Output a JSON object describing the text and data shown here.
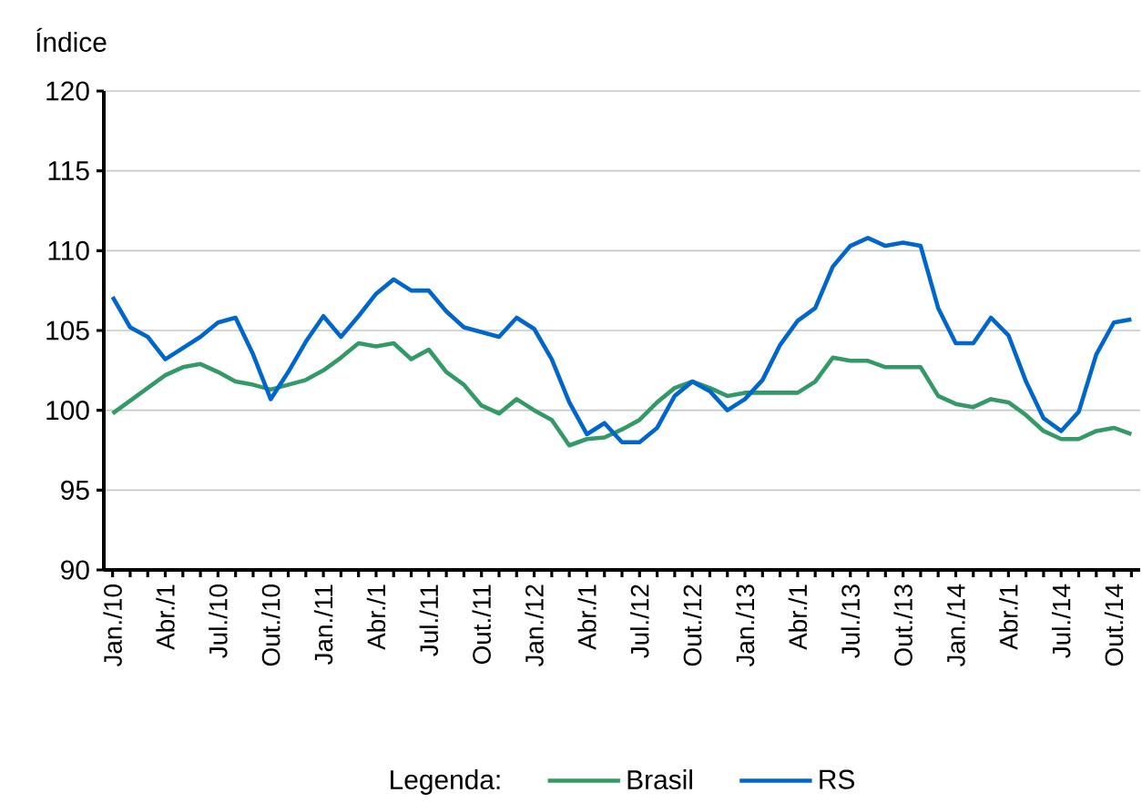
{
  "chart_data": {
    "type": "line",
    "ylabel": "Índice",
    "legend_title": "Legenda:",
    "legend": "bottom",
    "grid": "y",
    "categories": [
      "Jan./10",
      null,
      null,
      "Abr./1",
      null,
      null,
      "Jul./10",
      null,
      null,
      "Out./10",
      null,
      null,
      "Jan./11",
      null,
      null,
      "Abr./1",
      null,
      null,
      "Jul./11",
      null,
      null,
      "Out./11",
      null,
      null,
      "Jan./12",
      null,
      null,
      "Abr./1",
      null,
      null,
      "Jul./12",
      null,
      null,
      "Out./12",
      null,
      null,
      "Jan./13",
      null,
      null,
      "Abr./1",
      null,
      null,
      "Jul./13",
      null,
      null,
      "Out./13",
      null,
      null,
      "Jan./14",
      null,
      null,
      "Abr./1",
      null,
      null,
      "Jul./14",
      null,
      null,
      "Out./14",
      null
    ],
    "ylim": [
      90,
      120
    ],
    "yticks": [
      90,
      95,
      100,
      105,
      110,
      115,
      120
    ],
    "series": [
      {
        "name": "Brasil",
        "color": "#339966",
        "values": [
          99.8,
          100.6,
          101.4,
          102.2,
          102.7,
          102.9,
          102.4,
          101.8,
          101.6,
          101.3,
          101.6,
          101.9,
          102.5,
          103.3,
          104.2,
          104.0,
          104.2,
          103.2,
          103.8,
          102.4,
          101.6,
          100.3,
          99.8,
          100.7,
          100.0,
          99.4,
          97.8,
          98.2,
          98.3,
          98.8,
          99.4,
          100.5,
          101.4,
          101.8,
          101.4,
          100.9,
          101.1,
          101.1,
          101.1,
          101.1,
          101.8,
          103.3,
          103.1,
          103.1,
          102.7,
          102.7,
          102.7,
          100.9,
          100.4,
          100.2,
          100.7,
          100.5,
          99.7,
          98.7,
          98.2,
          98.2,
          98.7,
          98.9,
          98.5
        ]
      },
      {
        "name": "RS",
        "color": "#0066cc",
        "values": [
          107.1,
          105.2,
          104.6,
          103.2,
          103.9,
          104.6,
          105.5,
          105.8,
          103.5,
          100.7,
          102.4,
          104.3,
          105.9,
          104.6,
          105.9,
          107.3,
          108.2,
          107.5,
          107.5,
          106.2,
          105.2,
          104.9,
          104.6,
          105.8,
          105.1,
          103.2,
          100.5,
          98.5,
          99.2,
          98.0,
          98.0,
          98.9,
          100.9,
          101.8,
          101.2,
          100.0,
          100.7,
          101.9,
          104.1,
          105.6,
          106.4,
          109.0,
          110.3,
          110.8,
          110.3,
          110.5,
          110.3,
          106.4,
          104.2,
          104.2,
          105.8,
          104.7,
          101.8,
          99.5,
          98.7,
          99.9,
          103.5,
          105.5,
          105.7
        ]
      }
    ]
  }
}
